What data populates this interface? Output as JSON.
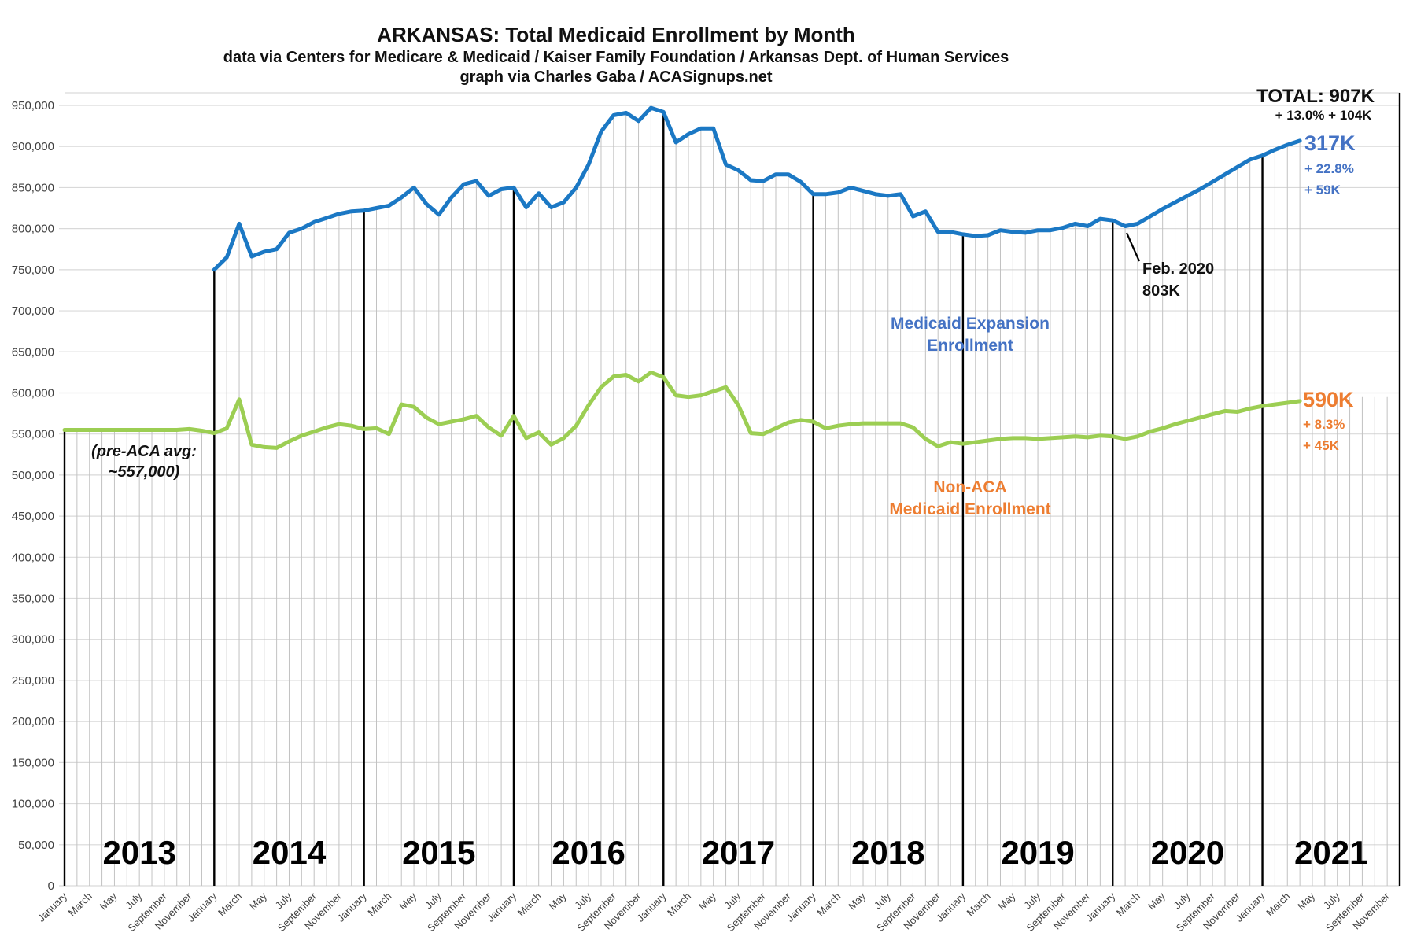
{
  "header": {
    "title": "ARKANSAS: Total Medicaid Enrollment by Month",
    "subtitle": "data via Centers for Medicare & Medicaid / Kaiser Family Foundation / Arkansas Dept. of Human Services",
    "credit": "graph via Charles Gaba / ACASignups.net"
  },
  "chart_data": {
    "type": "line",
    "title": "ARKANSAS: Total Medicaid Enrollment by Month",
    "x_axis": {
      "years": [
        "2013",
        "2014",
        "2015",
        "2016",
        "2017",
        "2018",
        "2019",
        "2020",
        "2021"
      ],
      "month_labels": [
        "January",
        "March",
        "May",
        "July",
        "September",
        "November"
      ]
    },
    "y_axis": {
      "min": 0,
      "max": 950000,
      "step": 50000,
      "tick_labels": [
        "0",
        "50,000",
        "100,000",
        "150,000",
        "200,000",
        "250,000",
        "300,000",
        "350,000",
        "400,000",
        "450,000",
        "500,000",
        "550,000",
        "600,000",
        "650,000",
        "700,000",
        "750,000",
        "800,000",
        "850,000",
        "900,000",
        "950,000"
      ]
    },
    "unit": "enrollees (values_k are thousands of people, estimated from plot)",
    "series": [
      {
        "name": "Total Medicaid Enrollment (Non-ACA + Expansion)",
        "color": "#1b78c4",
        "start": "2014-01",
        "values_k": [
          750,
          765,
          806,
          766,
          772,
          775,
          795,
          800,
          808,
          813,
          818,
          821,
          822,
          825,
          828,
          838,
          850,
          830,
          817,
          838,
          854,
          858,
          840,
          848,
          850,
          826,
          843,
          826,
          832,
          850,
          878,
          918,
          938,
          941,
          931,
          947,
          942,
          905,
          915,
          922,
          922,
          878,
          871,
          859,
          858,
          866,
          866,
          857,
          842,
          842,
          844,
          850,
          846,
          842,
          840,
          842,
          815,
          821,
          796,
          796,
          793,
          791,
          792,
          798,
          796,
          795,
          798,
          798,
          801,
          806,
          803,
          812,
          810,
          803,
          806,
          815,
          824,
          832,
          840,
          848,
          857,
          866,
          875,
          884,
          889,
          896,
          902,
          907
        ]
      },
      {
        "name": "Non-ACA Medicaid Enrollment",
        "color": "#9cce53",
        "start": "2013-01",
        "values_k": [
          555,
          555,
          555,
          555,
          555,
          555,
          555,
          555,
          555,
          555,
          556,
          554,
          551,
          557,
          592,
          537,
          534,
          533,
          541,
          548,
          553,
          558,
          562,
          560,
          556,
          557,
          550,
          586,
          583,
          570,
          562,
          565,
          568,
          572,
          558,
          548,
          572,
          545,
          552,
          537,
          545,
          560,
          585,
          607,
          620,
          622,
          614,
          625,
          619,
          597,
          595,
          597,
          602,
          607,
          585,
          551,
          550,
          557,
          564,
          567,
          565,
          557,
          560,
          562,
          563,
          563,
          563,
          563,
          558,
          544,
          535,
          540,
          538,
          540,
          542,
          544,
          545,
          545,
          544,
          545,
          546,
          547,
          546,
          548,
          547,
          544,
          547,
          553,
          557,
          562,
          566,
          570,
          574,
          578,
          577,
          581,
          584,
          586,
          588,
          590
        ]
      }
    ],
    "annotations": {
      "total": {
        "line1": "TOTAL: 907K",
        "line2": "+ 13.0%  + 104K"
      },
      "expansion_value": {
        "line1": "317K",
        "line2": "+ 22.8%",
        "line3": "+ 59K"
      },
      "nonaca_value": {
        "line1": "590K",
        "line2": "+ 8.3%",
        "line3": "+ 45K"
      },
      "feb2020": {
        "line1": "Feb. 2020",
        "line2": "803K"
      },
      "expansion_label": {
        "line1": "Medicaid Expansion",
        "line2": "Enrollment"
      },
      "nonaca_label": {
        "line1": "Non-ACA",
        "line2": "Medicaid Enrollment"
      },
      "pre_aca": {
        "line1": "(pre-ACA avg:",
        "line2": "~557,000)"
      }
    },
    "colors": {
      "expansion_text": "#4472c4",
      "nonaca_text": "#ed7d31",
      "grid": "#d9d9d9",
      "dropline": "#c2c2c2",
      "january_line": "#000000"
    },
    "legend_position": "labels-on-chart",
    "grid": true
  }
}
